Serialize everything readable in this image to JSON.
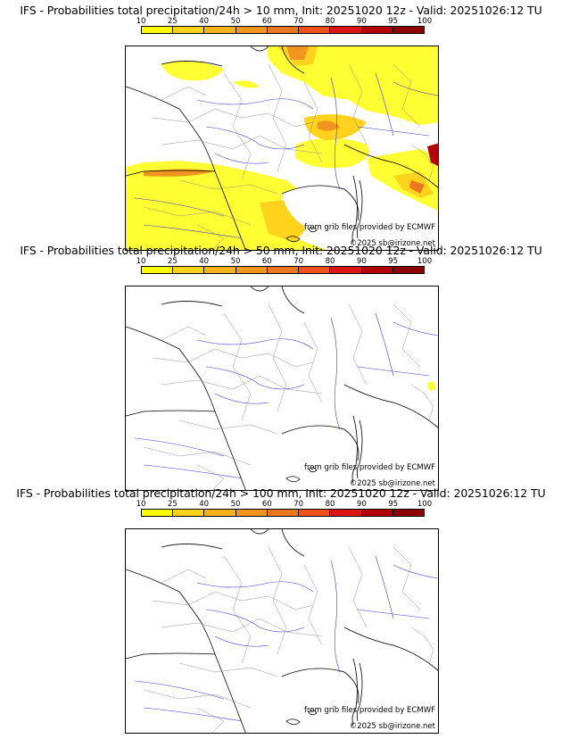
{
  "colorbar": {
    "ticks": [
      "10",
      "25",
      "40",
      "50",
      "60",
      "70",
      "80",
      "90",
      "95",
      "100"
    ],
    "colors": [
      "#ffff00",
      "#ffd21e",
      "#f5b41e",
      "#f0961e",
      "#eb781e",
      "#f0501e",
      "#dc1414",
      "#b40000",
      "#8c0000"
    ]
  },
  "panels": [
    {
      "title": "IFS - Probabilities total precipitation/24h > 10 mm, Init: 20251020 12z - Valid: 20251026:12 TU",
      "source_credit": "from grib files provided by ECMWF",
      "copyright": "©2025 sb@irizone.net"
    },
    {
      "title": "IFS - Probabilities total precipitation/24h > 50 mm, Init: 20251020 12z - Valid: 20251026:12 TU",
      "source_credit": "from grib files provided by ECMWF",
      "copyright": "©2025 sb@irizone.net"
    },
    {
      "title": "IFS - Probabilities total precipitation/24h > 100 mm, Init: 20251020 12z - Valid: 20251026:12 TU",
      "source_credit": "from grib files provided by ECMWF",
      "copyright": "©2025 sb@irizone.net"
    }
  ]
}
